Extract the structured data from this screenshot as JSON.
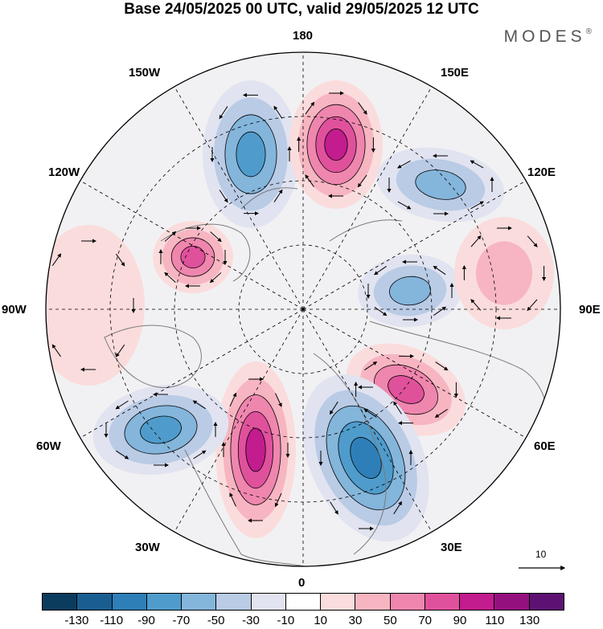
{
  "title": "Base 24/05/2025 00 UTC, valid 29/05/2025 12 UTC",
  "logo": "MODES",
  "logo_mark": "®",
  "lon_labels": {
    "top": "180",
    "bottom": "0",
    "left": "90W",
    "right": "90E",
    "upper_left_1": "150W",
    "upper_left_2": "120W",
    "upper_right_1": "150E",
    "upper_right_2": "120E",
    "lower_left_1": "60W",
    "lower_left_2": "30W",
    "lower_right_1": "60E",
    "lower_right_2": "30E"
  },
  "reference_vector_label": "10",
  "colorbar": {
    "colors": [
      "#0b3c5e",
      "#1a5e91",
      "#2e7fb8",
      "#4f9ccc",
      "#84b5db",
      "#b9cbe5",
      "#e1e3f0",
      "#ffffff",
      "#fbdcdc",
      "#f6b5c1",
      "#ef86ae",
      "#e0519c",
      "#c21c8e",
      "#95107f",
      "#5d1273"
    ],
    "tick_labels": [
      "-130",
      "-110",
      "-90",
      "-70",
      "-50",
      "-30",
      "-10",
      "10",
      "30",
      "50",
      "70",
      "90",
      "110",
      "130"
    ]
  },
  "anomaly_centers": [
    {
      "name": "north-pacific-negative",
      "value": -90
    },
    {
      "name": "east-siberia-positive",
      "value": 110
    },
    {
      "name": "east-asia-negative",
      "value": -70
    },
    {
      "name": "central-asia-negative",
      "value": -70
    },
    {
      "name": "siberia-positive",
      "value": 50
    },
    {
      "name": "russia-positive",
      "value": 90
    },
    {
      "name": "europe-negative",
      "value": -110
    },
    {
      "name": "north-atlantic-positive",
      "value": 110
    },
    {
      "name": "west-atlantic-negative",
      "value": -90
    },
    {
      "name": "canada-positive",
      "value": 90
    },
    {
      "name": "alaska-positive",
      "value": 30
    }
  ]
}
